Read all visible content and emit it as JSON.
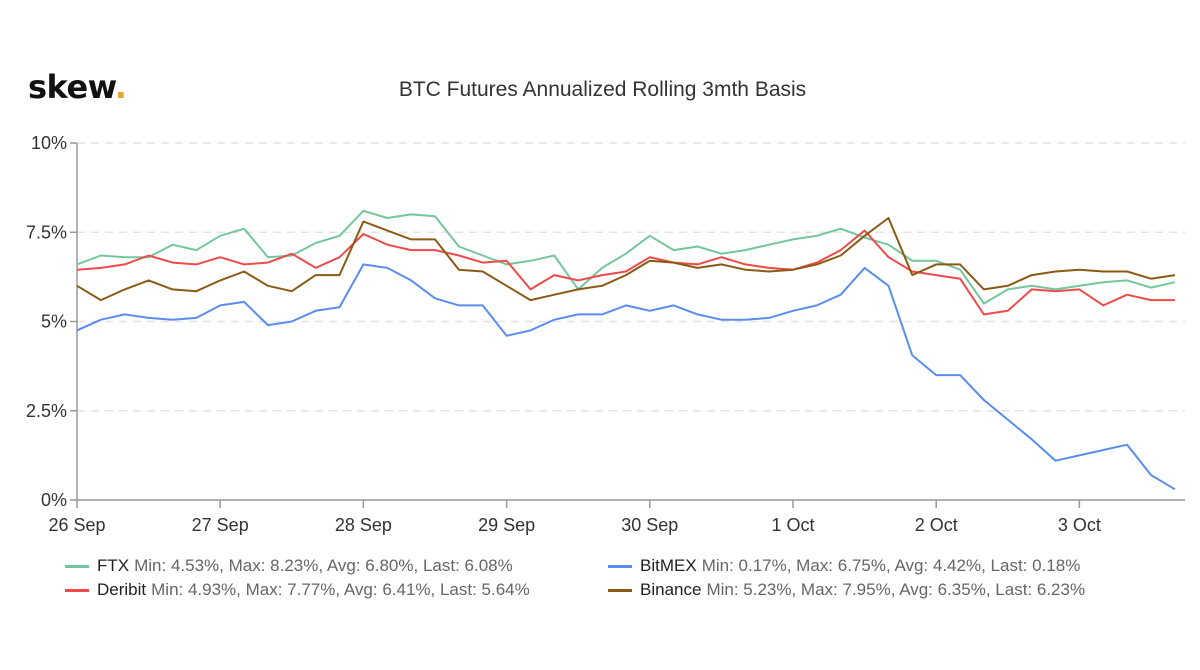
{
  "logo": {
    "text": "skew",
    "dot": ".",
    "dot_color": "#e8a531"
  },
  "chart_data": {
    "type": "line",
    "title": "BTC Futures Annualized Rolling 3mth Basis",
    "xlabel": "",
    "ylabel": "",
    "ylim": [
      0,
      10
    ],
    "y_ticks": [
      "0%",
      "2.5%",
      "5%",
      "7.5%",
      "10%"
    ],
    "y_tick_values": [
      0,
      2.5,
      5,
      7.5,
      10
    ],
    "x_ticks": [
      "26 Sep",
      "27 Sep",
      "28 Sep",
      "29 Sep",
      "30 Sep",
      "1 Oct",
      "2 Oct",
      "3 Oct"
    ],
    "grid": "horizontal dashed",
    "legend_position": "bottom",
    "x": [
      "26 Sep 00:00",
      "26 Sep 04:00",
      "26 Sep 08:00",
      "26 Sep 12:00",
      "26 Sep 16:00",
      "26 Sep 20:00",
      "27 Sep 00:00",
      "27 Sep 04:00",
      "27 Sep 08:00",
      "27 Sep 12:00",
      "27 Sep 16:00",
      "27 Sep 20:00",
      "28 Sep 00:00",
      "28 Sep 04:00",
      "28 Sep 08:00",
      "28 Sep 12:00",
      "28 Sep 16:00",
      "28 Sep 20:00",
      "29 Sep 00:00",
      "29 Sep 04:00",
      "29 Sep 08:00",
      "29 Sep 12:00",
      "29 Sep 16:00",
      "29 Sep 20:00",
      "30 Sep 00:00",
      "30 Sep 04:00",
      "30 Sep 08:00",
      "30 Sep 12:00",
      "30 Sep 16:00",
      "30 Sep 20:00",
      "1 Oct 00:00",
      "1 Oct 04:00",
      "1 Oct 08:00",
      "1 Oct 12:00",
      "1 Oct 16:00",
      "1 Oct 20:00",
      "2 Oct 00:00",
      "2 Oct 04:00",
      "2 Oct 08:00",
      "2 Oct 12:00",
      "2 Oct 16:00",
      "2 Oct 20:00",
      "3 Oct 00:00",
      "3 Oct 04:00",
      "3 Oct 08:00",
      "3 Oct 12:00",
      "3 Oct 16:00"
    ],
    "series": [
      {
        "name": "FTX",
        "color": "#74c69d",
        "stats": "Min: 4.53%, Max: 8.23%, Avg: 6.80%, Last: 6.08%",
        "values": [
          6.6,
          6.85,
          6.8,
          6.8,
          7.15,
          7.0,
          7.4,
          7.6,
          6.8,
          6.85,
          7.2,
          7.4,
          8.1,
          7.9,
          8.0,
          7.95,
          7.1,
          6.85,
          6.6,
          6.7,
          6.85,
          5.9,
          6.5,
          6.9,
          7.4,
          7.0,
          7.1,
          6.9,
          7.0,
          7.15,
          7.3,
          7.4,
          7.6,
          7.35,
          7.15,
          6.7,
          6.7,
          6.45,
          5.5,
          5.9,
          6.0,
          5.9,
          6.0,
          6.1,
          6.15,
          5.95,
          6.1
        ]
      },
      {
        "name": "Deribit",
        "color": "#f04a4a",
        "stats": "Min: 4.93%, Max: 7.77%, Avg: 6.41%, Last: 5.64%",
        "values": [
          6.45,
          6.5,
          6.6,
          6.85,
          6.65,
          6.6,
          6.8,
          6.6,
          6.65,
          6.9,
          6.5,
          6.8,
          7.45,
          7.15,
          7.0,
          7.0,
          6.85,
          6.65,
          6.7,
          5.9,
          6.3,
          6.15,
          6.3,
          6.4,
          6.8,
          6.65,
          6.6,
          6.8,
          6.6,
          6.5,
          6.45,
          6.65,
          7.0,
          7.55,
          6.8,
          6.4,
          6.3,
          6.2,
          5.2,
          5.3,
          5.9,
          5.85,
          5.9,
          5.45,
          5.75,
          5.6,
          5.6
        ]
      },
      {
        "name": "BitMEX",
        "color": "#5b8def",
        "stats": "Min: 0.17%, Max: 6.75%, Avg: 4.42%, Last: 0.18%",
        "values": [
          4.75,
          5.05,
          5.2,
          5.1,
          5.05,
          5.1,
          5.45,
          5.55,
          4.9,
          5.0,
          5.3,
          5.4,
          6.6,
          6.5,
          6.15,
          5.65,
          5.45,
          5.45,
          4.6,
          4.75,
          5.05,
          5.2,
          5.2,
          5.45,
          5.3,
          5.45,
          5.2,
          5.05,
          5.05,
          5.1,
          5.3,
          5.45,
          5.75,
          6.5,
          6.0,
          4.05,
          3.5,
          3.5,
          2.8,
          2.25,
          1.7,
          1.1,
          1.25,
          1.4,
          1.55,
          0.7,
          0.3
        ]
      },
      {
        "name": "Binance",
        "color": "#8b5a14",
        "stats": "Min: 5.23%, Max: 7.95%, Avg: 6.35%, Last: 6.23%",
        "values": [
          6.0,
          5.6,
          5.9,
          6.15,
          5.9,
          5.85,
          6.15,
          6.4,
          6.0,
          5.85,
          6.3,
          6.3,
          7.8,
          7.55,
          7.3,
          7.3,
          6.45,
          6.4,
          6.0,
          5.6,
          5.75,
          5.9,
          6.0,
          6.3,
          6.7,
          6.65,
          6.5,
          6.6,
          6.45,
          6.4,
          6.45,
          6.6,
          6.85,
          7.4,
          7.9,
          6.3,
          6.6,
          6.6,
          5.9,
          6.0,
          6.3,
          6.4,
          6.45,
          6.4,
          6.4,
          6.2,
          6.3
        ]
      }
    ]
  }
}
